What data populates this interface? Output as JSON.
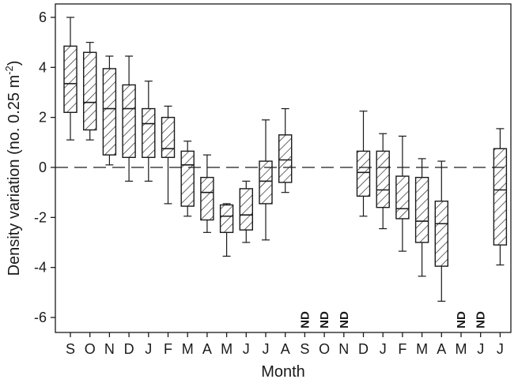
{
  "chart_data": {
    "type": "box",
    "xlabel": "Month",
    "ylabel": "Density variation (no. 0.25 m",
    "ylabel_sup": "-2",
    "ylabel_close": ")",
    "ylim": [
      -6.5,
      6.5
    ],
    "yticks": [
      6,
      4,
      2,
      0,
      -2,
      -4,
      -6
    ],
    "ytick_labels": [
      "6",
      "4",
      "2",
      "0",
      "-2",
      "-4",
      "-6"
    ],
    "reference_line": 0,
    "nd_label": "ND",
    "categories": [
      "S",
      "O",
      "N",
      "D",
      "J",
      "F",
      "M",
      "A",
      "M",
      "J",
      "J",
      "A",
      "S",
      "O",
      "N",
      "D",
      "J",
      "F",
      "M",
      "A",
      "M",
      "J",
      "J"
    ],
    "boxes": [
      {
        "min": 1.1,
        "q1": 2.2,
        "median": 3.35,
        "q3": 4.85,
        "max": 6.0
      },
      {
        "min": 1.1,
        "q1": 1.5,
        "median": 2.6,
        "q3": 4.6,
        "max": 5.0
      },
      {
        "min": 0.1,
        "q1": 0.5,
        "median": 2.35,
        "q3": 3.95,
        "max": 4.45
      },
      {
        "min": -0.55,
        "q1": 0.4,
        "median": 2.35,
        "q3": 3.3,
        "max": 4.45
      },
      {
        "min": -0.55,
        "q1": 0.4,
        "median": 1.75,
        "q3": 2.35,
        "max": 3.45
      },
      {
        "min": -1.45,
        "q1": 0.4,
        "median": 0.75,
        "q3": 2.0,
        "max": 2.45
      },
      {
        "min": -1.95,
        "q1": -1.55,
        "median": 0.1,
        "q3": 0.65,
        "max": 1.05
      },
      {
        "min": -2.6,
        "q1": -2.1,
        "median": -1.0,
        "q3": -0.4,
        "max": 0.5
      },
      {
        "min": -3.55,
        "q1": -2.6,
        "median": -1.95,
        "q3": -1.5,
        "max": -1.45
      },
      {
        "min": -3.0,
        "q1": -2.5,
        "median": -1.9,
        "q3": -0.85,
        "max": -0.55
      },
      {
        "min": -2.9,
        "q1": -1.45,
        "median": -0.55,
        "q3": 0.25,
        "max": 1.9
      },
      {
        "min": -1.0,
        "q1": -0.6,
        "median": 0.3,
        "q3": 1.3,
        "max": 2.35
      },
      {
        "nd": true
      },
      {
        "nd": true
      },
      {
        "nd": true
      },
      {
        "min": -1.95,
        "q1": -1.15,
        "median": -0.2,
        "q3": 0.65,
        "max": 2.25
      },
      {
        "min": -2.45,
        "q1": -1.6,
        "median": -0.9,
        "q3": 0.65,
        "max": 1.35
      },
      {
        "min": -3.35,
        "q1": -2.05,
        "median": -1.65,
        "q3": -0.35,
        "max": 1.25
      },
      {
        "min": -4.35,
        "q1": -3.0,
        "median": -2.15,
        "q3": -0.4,
        "max": 0.35
      },
      {
        "min": -5.35,
        "q1": -3.95,
        "median": -2.25,
        "q3": -1.35,
        "max": 0.25
      },
      {
        "nd": true
      },
      {
        "nd": true
      },
      {
        "min": -3.9,
        "q1": -3.1,
        "median": -0.9,
        "q3": 0.75,
        "max": 1.55
      }
    ]
  }
}
